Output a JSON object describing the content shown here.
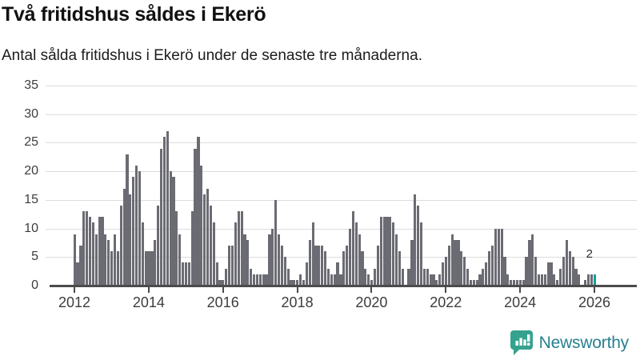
{
  "header": {
    "title": "Två fritidshus såldes i Ekerö",
    "subtitle": "Antal sålda fritidshus i Ekerö under de senaste tre månaderna."
  },
  "chart_data": {
    "type": "bar",
    "title": "Två fritidshus såldes i Ekerö",
    "subtitle": "Antal sålda fritidshus i Ekerö under de senaste tre månaderna.",
    "x_start_month": "2012-01",
    "x_end_month": "2026-01",
    "x_frequency": "monthly",
    "values": [
      9,
      4,
      7,
      13,
      13,
      12,
      11,
      9,
      12,
      12,
      9,
      8,
      6,
      9,
      6,
      14,
      17,
      23,
      16,
      19,
      21,
      20,
      11,
      6,
      6,
      6,
      8,
      14,
      24,
      26,
      27,
      20,
      19,
      13,
      9,
      4,
      4,
      4,
      13,
      24,
      26,
      21,
      16,
      17,
      14,
      11,
      4,
      1,
      1,
      3,
      7,
      7,
      11,
      13,
      13,
      9,
      8,
      3,
      2,
      2,
      2,
      2,
      2,
      9,
      10,
      15,
      9,
      7,
      5,
      3,
      1,
      1,
      1,
      2,
      1,
      4,
      8,
      11,
      7,
      7,
      7,
      6,
      3,
      2,
      2,
      4,
      2,
      6,
      7,
      10,
      13,
      11,
      9,
      6,
      3,
      2,
      1,
      3,
      7,
      12,
      12,
      12,
      12,
      11,
      9,
      6,
      3,
      0,
      3,
      8,
      16,
      14,
      11,
      3,
      3,
      2,
      2,
      1,
      2,
      4,
      5,
      7,
      9,
      8,
      8,
      6,
      5,
      3,
      1,
      1,
      1,
      2,
      3,
      4,
      6,
      7,
      10,
      10,
      10,
      5,
      2,
      1,
      1,
      1,
      1,
      1,
      5,
      8,
      9,
      5,
      2,
      2,
      2,
      4,
      4,
      2,
      1,
      3,
      5,
      8,
      6,
      5,
      3,
      2,
      0,
      1,
      2,
      2,
      2
    ],
    "highlight_index": 168,
    "highlight_value_label": "2",
    "ylim": [
      0,
      35
    ],
    "y_ticks": [
      0,
      5,
      10,
      15,
      20,
      25,
      30,
      35
    ],
    "x_tick_years": [
      2012,
      2014,
      2016,
      2018,
      2020,
      2022,
      2024,
      2026
    ],
    "grid": true,
    "legend": "none",
    "bar_color": "#6b6b73",
    "highlight_color": "#00a3a0",
    "grid_color": "#dcdcdc",
    "axis_color": "#4b4b4b",
    "label_color": "#3d3d3d"
  },
  "footer": {
    "brand": "Newsworthy",
    "brand_color": "#27808e",
    "logo_color": "#35a28e"
  }
}
